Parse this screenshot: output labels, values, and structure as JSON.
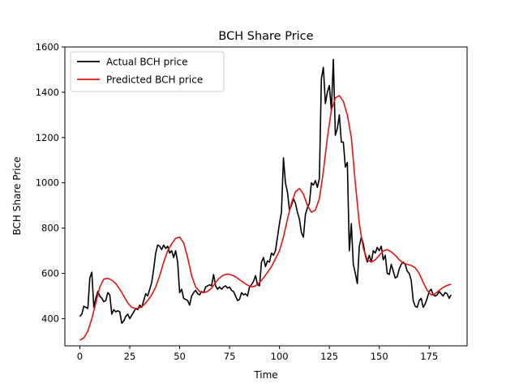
{
  "chart_data": {
    "type": "line",
    "title": "BCH Share Price",
    "xlabel": "Time",
    "ylabel": "BCH Share Price",
    "xlim": [
      -7.5,
      194
    ],
    "ylim": [
      280,
      1600
    ],
    "xticks": [
      0,
      25,
      50,
      75,
      100,
      125,
      150,
      175
    ],
    "yticks": [
      400,
      600,
      800,
      1000,
      1200,
      1400,
      1600
    ],
    "grid": false,
    "legend_position": "top-left",
    "series": [
      {
        "name": "Actual BCH price",
        "color": "#000000",
        "points": [
          [
            0,
            410
          ],
          [
            1,
            420
          ],
          [
            2,
            455
          ],
          [
            3,
            450
          ],
          [
            4,
            445
          ],
          [
            5,
            580
          ],
          [
            6,
            605
          ],
          [
            7,
            450
          ],
          [
            8,
            490
          ],
          [
            9,
            520
          ],
          [
            10,
            500
          ],
          [
            11,
            490
          ],
          [
            12,
            475
          ],
          [
            13,
            480
          ],
          [
            14,
            515
          ],
          [
            15,
            505
          ],
          [
            16,
            420
          ],
          [
            17,
            440
          ],
          [
            18,
            430
          ],
          [
            19,
            435
          ],
          [
            20,
            430
          ],
          [
            21,
            380
          ],
          [
            22,
            390
          ],
          [
            23,
            410
          ],
          [
            24,
            420
          ],
          [
            25,
            400
          ],
          [
            26,
            415
          ],
          [
            27,
            430
          ],
          [
            28,
            445
          ],
          [
            29,
            440
          ],
          [
            30,
            460
          ],
          [
            31,
            450
          ],
          [
            32,
            480
          ],
          [
            33,
            510
          ],
          [
            34,
            500
          ],
          [
            35,
            530
          ],
          [
            36,
            560
          ],
          [
            37,
            620
          ],
          [
            38,
            690
          ],
          [
            39,
            725
          ],
          [
            40,
            720
          ],
          [
            41,
            705
          ],
          [
            42,
            725
          ],
          [
            43,
            710
          ],
          [
            44,
            720
          ],
          [
            45,
            690
          ],
          [
            46,
            700
          ],
          [
            47,
            670
          ],
          [
            48,
            700
          ],
          [
            49,
            650
          ],
          [
            50,
            515
          ],
          [
            51,
            530
          ],
          [
            52,
            490
          ],
          [
            53,
            485
          ],
          [
            54,
            480
          ],
          [
            55,
            460
          ],
          [
            56,
            500
          ],
          [
            57,
            515
          ],
          [
            58,
            525
          ],
          [
            59,
            510
          ],
          [
            60,
            505
          ],
          [
            61,
            520
          ],
          [
            62,
            515
          ],
          [
            63,
            540
          ],
          [
            64,
            545
          ],
          [
            65,
            550
          ],
          [
            66,
            545
          ],
          [
            67,
            595
          ],
          [
            68,
            545
          ],
          [
            69,
            530
          ],
          [
            70,
            540
          ],
          [
            71,
            530
          ],
          [
            72,
            540
          ],
          [
            73,
            545
          ],
          [
            74,
            535
          ],
          [
            75,
            540
          ],
          [
            76,
            525
          ],
          [
            77,
            520
          ],
          [
            78,
            500
          ],
          [
            79,
            480
          ],
          [
            80,
            485
          ],
          [
            81,
            515
          ],
          [
            82,
            505
          ],
          [
            83,
            510
          ],
          [
            84,
            500
          ],
          [
            85,
            540
          ],
          [
            86,
            550
          ],
          [
            87,
            565
          ],
          [
            88,
            590
          ],
          [
            89,
            550
          ],
          [
            90,
            545
          ],
          [
            91,
            650
          ],
          [
            92,
            670
          ],
          [
            93,
            630
          ],
          [
            94,
            655
          ],
          [
            95,
            650
          ],
          [
            96,
            690
          ],
          [
            97,
            680
          ],
          [
            98,
            700
          ],
          [
            99,
            760
          ],
          [
            100,
            820
          ],
          [
            101,
            870
          ],
          [
            102,
            1110
          ],
          [
            103,
            1000
          ],
          [
            104,
            960
          ],
          [
            105,
            880
          ],
          [
            106,
            900
          ],
          [
            107,
            930
          ],
          [
            108,
            910
          ],
          [
            109,
            870
          ],
          [
            110,
            840
          ],
          [
            111,
            780
          ],
          [
            112,
            760
          ],
          [
            113,
            860
          ],
          [
            114,
            890
          ],
          [
            115,
            910
          ],
          [
            116,
            1000
          ],
          [
            117,
            990
          ],
          [
            118,
            1010
          ],
          [
            119,
            980
          ],
          [
            120,
            1020
          ],
          [
            121,
            1460
          ],
          [
            122,
            1510
          ],
          [
            123,
            1350
          ],
          [
            124,
            1400
          ],
          [
            125,
            1430
          ],
          [
            126,
            1320
          ],
          [
            127,
            1545
          ],
          [
            128,
            1210
          ],
          [
            129,
            1240
          ],
          [
            130,
            1300
          ],
          [
            131,
            1180
          ],
          [
            132,
            1180
          ],
          [
            133,
            1070
          ],
          [
            134,
            1090
          ],
          [
            135,
            700
          ],
          [
            136,
            820
          ],
          [
            137,
            640
          ],
          [
            138,
            600
          ],
          [
            139,
            555
          ],
          [
            140,
            720
          ],
          [
            141,
            760
          ],
          [
            142,
            730
          ],
          [
            143,
            680
          ],
          [
            144,
            650
          ],
          [
            145,
            680
          ],
          [
            146,
            650
          ],
          [
            147,
            700
          ],
          [
            148,
            690
          ],
          [
            149,
            715
          ],
          [
            150,
            700
          ],
          [
            151,
            720
          ],
          [
            152,
            660
          ],
          [
            153,
            680
          ],
          [
            154,
            600
          ],
          [
            155,
            595
          ],
          [
            156,
            640
          ],
          [
            157,
            610
          ],
          [
            158,
            580
          ],
          [
            159,
            585
          ],
          [
            160,
            620
          ],
          [
            161,
            640
          ],
          [
            162,
            650
          ],
          [
            163,
            640
          ],
          [
            164,
            610
          ],
          [
            165,
            600
          ],
          [
            166,
            570
          ],
          [
            167,
            480
          ],
          [
            168,
            455
          ],
          [
            169,
            450
          ],
          [
            170,
            480
          ],
          [
            171,
            490
          ],
          [
            172,
            450
          ],
          [
            173,
            465
          ],
          [
            174,
            490
          ],
          [
            175,
            520
          ],
          [
            176,
            530
          ],
          [
            177,
            505
          ],
          [
            178,
            500
          ],
          [
            179,
            505
          ],
          [
            180,
            520
          ],
          [
            181,
            510
          ],
          [
            182,
            500
          ],
          [
            183,
            515
          ],
          [
            184,
            510
          ],
          [
            185,
            490
          ],
          [
            186,
            505
          ]
        ]
      },
      {
        "name": "Predicted BCH price",
        "color": "#ee1111",
        "points": [
          [
            0,
            305
          ],
          [
            2,
            315
          ],
          [
            4,
            345
          ],
          [
            6,
            400
          ],
          [
            8,
            470
          ],
          [
            10,
            540
          ],
          [
            12,
            575
          ],
          [
            14,
            578
          ],
          [
            16,
            570
          ],
          [
            18,
            555
          ],
          [
            20,
            530
          ],
          [
            22,
            500
          ],
          [
            24,
            470
          ],
          [
            26,
            450
          ],
          [
            28,
            445
          ],
          [
            30,
            448
          ],
          [
            32,
            460
          ],
          [
            34,
            480
          ],
          [
            36,
            505
          ],
          [
            38,
            540
          ],
          [
            40,
            590
          ],
          [
            42,
            650
          ],
          [
            44,
            700
          ],
          [
            46,
            730
          ],
          [
            48,
            755
          ],
          [
            50,
            760
          ],
          [
            52,
            735
          ],
          [
            54,
            670
          ],
          [
            56,
            590
          ],
          [
            58,
            540
          ],
          [
            60,
            520
          ],
          [
            62,
            515
          ],
          [
            64,
            520
          ],
          [
            66,
            535
          ],
          [
            68,
            560
          ],
          [
            70,
            580
          ],
          [
            72,
            593
          ],
          [
            74,
            597
          ],
          [
            76,
            593
          ],
          [
            78,
            585
          ],
          [
            80,
            572
          ],
          [
            82,
            560
          ],
          [
            84,
            548
          ],
          [
            86,
            540
          ],
          [
            88,
            545
          ],
          [
            90,
            560
          ],
          [
            92,
            580
          ],
          [
            94,
            605
          ],
          [
            96,
            630
          ],
          [
            98,
            665
          ],
          [
            100,
            700
          ],
          [
            102,
            760
          ],
          [
            104,
            840
          ],
          [
            106,
            910
          ],
          [
            108,
            960
          ],
          [
            110,
            975
          ],
          [
            112,
            950
          ],
          [
            114,
            900
          ],
          [
            116,
            870
          ],
          [
            118,
            880
          ],
          [
            120,
            930
          ],
          [
            122,
            1050
          ],
          [
            124,
            1200
          ],
          [
            126,
            1320
          ],
          [
            128,
            1375
          ],
          [
            130,
            1385
          ],
          [
            132,
            1360
          ],
          [
            134,
            1300
          ],
          [
            136,
            1200
          ],
          [
            138,
            1000
          ],
          [
            140,
            820
          ],
          [
            142,
            710
          ],
          [
            144,
            660
          ],
          [
            146,
            650
          ],
          [
            148,
            660
          ],
          [
            150,
            680
          ],
          [
            152,
            700
          ],
          [
            154,
            705
          ],
          [
            156,
            695
          ],
          [
            158,
            680
          ],
          [
            160,
            660
          ],
          [
            162,
            645
          ],
          [
            164,
            640
          ],
          [
            166,
            635
          ],
          [
            168,
            625
          ],
          [
            170,
            600
          ],
          [
            172,
            560
          ],
          [
            174,
            525
          ],
          [
            176,
            505
          ],
          [
            178,
            510
          ],
          [
            180,
            525
          ],
          [
            182,
            538
          ],
          [
            184,
            547
          ],
          [
            186,
            552
          ]
        ]
      }
    ]
  }
}
